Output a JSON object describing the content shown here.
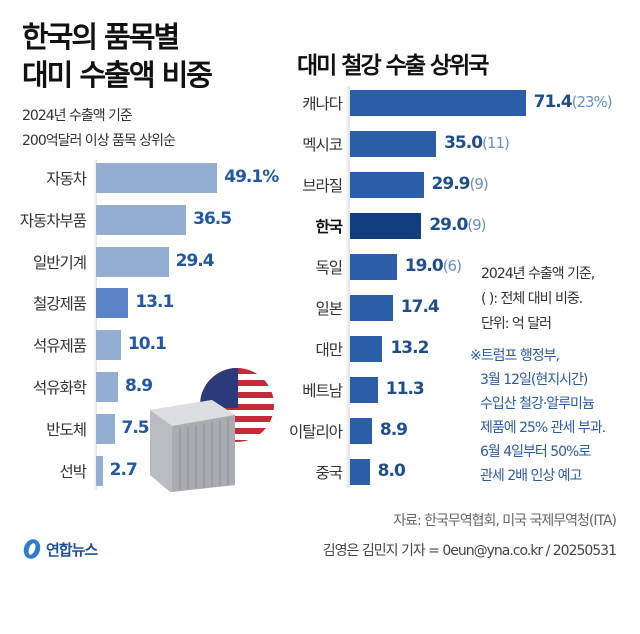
{
  "left": {
    "title_line1": "한국의 품목별",
    "title_line2": "대미 수출액 비중",
    "subtitle_line1": "2024년 수출액 기준",
    "subtitle_line2": "200억달러 이상 품목 상위순"
  },
  "right": {
    "title": "대미 철강 수출 상위국",
    "note_line1": "2024년 수출액 기준,",
    "note_line2": "(  ): 전체 대비 비중.",
    "note_line3": "단위: 억 달러",
    "remark_lines": [
      "※트럼프 행정부,",
      "3월 12일(현지시간)",
      "수입산 철강·알루미늄",
      "제품에 25% 관세 부과.",
      "6월 4일부터 50%로",
      "관세 2배 인상 예고"
    ]
  },
  "footer": {
    "source": "자료: 한국무역협회, 미국 국제무역청(ITA)",
    "credit": "김영은 김민지 기자 = 0eun@yna.co.kr / 20250531",
    "logo": "연합뉴스"
  },
  "colors": {
    "left_bar": "#94aed3",
    "left_highlight": "#5b85c7",
    "right_bar": "#2c5ea8",
    "right_highlight": "#0f3f7e",
    "value_text": "#2257a3"
  },
  "chart_data": [
    {
      "type": "bar",
      "orientation": "horizontal",
      "categories": [
        "자동차",
        "자동차부품",
        "일반기계",
        "철강제품",
        "석유제품",
        "석유화학",
        "반도체",
        "선박"
      ],
      "values": [
        49.1,
        36.5,
        29.4,
        13.1,
        10.1,
        8.9,
        7.5,
        2.7
      ],
      "value_labels": [
        "49.1%",
        "36.5",
        "29.4",
        "13.1",
        "10.1",
        "8.9",
        "7.5",
        "2.7"
      ],
      "highlight": "철강제품",
      "unit": "%"
    },
    {
      "type": "bar",
      "orientation": "horizontal",
      "categories": [
        "캐나다",
        "멕시코",
        "브라질",
        "한국",
        "독일",
        "일본",
        "대만",
        "베트남",
        "이탈리아",
        "중국"
      ],
      "values": [
        71.4,
        35.0,
        29.9,
        29.0,
        19.0,
        17.4,
        13.2,
        11.3,
        8.9,
        8.0
      ],
      "value_labels": [
        "71.4",
        "35.0",
        "29.9",
        "29.0",
        "19.0",
        "17.4",
        "13.2",
        "11.3",
        "8.9",
        "8.0"
      ],
      "share_labels": [
        "(23%)",
        "(11)",
        "(9)",
        "(9)",
        "(6)",
        "",
        "",
        "",
        "",
        ""
      ],
      "highlight": "한국",
      "unit": "억 달러"
    }
  ]
}
